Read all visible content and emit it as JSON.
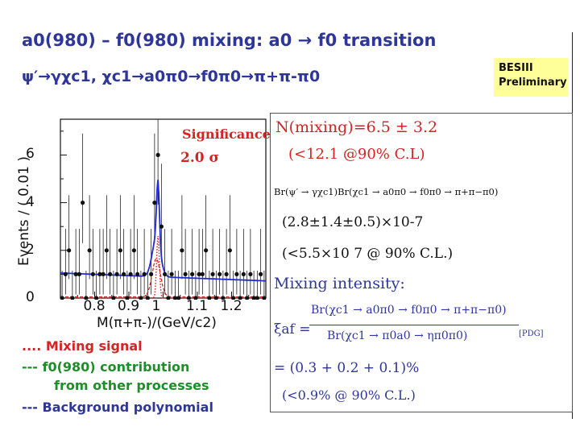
{
  "slide": {
    "title": "a0(980) – f0(980) mixing: a0 → f0 transition",
    "subtitle": "ψ′→γχc1, χc1→a0π0→f0π0→π+π-π0",
    "badge_line1": "BESIII",
    "badge_line2": "Preliminary"
  },
  "plot": {
    "significance_label": "Significance:",
    "significance_value": "2.0 σ",
    "ylabel": "Events / ( 0.01 )",
    "xlabel": "M(π+π-)/(GeV/c2)"
  },
  "chart_data": {
    "type": "scatter",
    "xlabel": "M(π+π-)/(GeV/c2)",
    "ylabel": "Events / ( 0.01 )",
    "xlim": [
      0.7,
      1.3
    ],
    "ylim": [
      0,
      7.5
    ],
    "xticks": [
      "0.8",
      "0.9",
      "1",
      "1.1",
      "1.2"
    ],
    "yticks": [
      "0",
      "2",
      "4",
      "6"
    ],
    "points": {
      "x": [
        0.705,
        0.715,
        0.725,
        0.735,
        0.745,
        0.755,
        0.765,
        0.775,
        0.785,
        0.795,
        0.805,
        0.815,
        0.825,
        0.835,
        0.845,
        0.855,
        0.865,
        0.875,
        0.885,
        0.895,
        0.905,
        0.915,
        0.925,
        0.935,
        0.945,
        0.955,
        0.965,
        0.975,
        0.985,
        0.995,
        1.005,
        1.015,
        1.025,
        1.035,
        1.045,
        1.055,
        1.065,
        1.075,
        1.085,
        1.095,
        1.105,
        1.115,
        1.125,
        1.135,
        1.145,
        1.155,
        1.165,
        1.175,
        1.185,
        1.195,
        1.205,
        1.215,
        1.225,
        1.235,
        1.245,
        1.255,
        1.265,
        1.275,
        1.285,
        1.295
      ],
      "y": [
        0,
        1,
        2,
        0,
        1,
        1,
        4,
        0,
        2,
        1,
        0,
        1,
        1,
        2,
        1,
        0,
        1,
        2,
        1,
        0,
        1,
        2,
        1,
        0,
        1,
        0,
        1,
        4,
        6,
        3,
        1,
        0,
        1,
        0,
        0,
        2,
        1,
        0,
        1,
        0,
        1,
        1,
        2,
        0,
        1,
        0,
        1,
        0,
        1,
        2,
        0,
        1,
        0,
        1,
        0,
        1,
        0,
        0,
        1,
        0
      ]
    },
    "series": [
      {
        "name": "Mixing signal",
        "color": "#d42424",
        "style": "dotted"
      },
      {
        "name": "f0(980) contribution from other processes",
        "color": "#d42424",
        "style": "dashed"
      },
      {
        "name": "Background polynomial",
        "color": "#1f2bd8",
        "style": "dashed"
      }
    ]
  },
  "legend": {
    "item1": ".... Mixing signal",
    "item2a": "--- f0(980) contribution",
    "item2b": "from other processes",
    "item3": "--- Background polynomial"
  },
  "results": {
    "n_mixing": "N(mixing)=6.5 ± 3.2",
    "n_limit": "(<12.1 @90% C.L)",
    "br_product": "Br(ψ′ → γχc1)Br(χc1 → a0π0 → f0π0 → π+π−π0)",
    "br_value": "(2.8±1.4±0.5)×10-7",
    "br_limit": "(<5.5×10 7 @ 90% C.L.)",
    "mixing_intensity": "Mixing intensity:",
    "xi_symbol": "ξaf =",
    "ratio_numerator": "Br(χc1 → a0π0 → f0π0 → π+π−π0)",
    "ratio_denominator": "Br(χc1 → π0a0 → ηπ0π0)",
    "pdg_tag": "[PDG]",
    "xi_value": "= (0.3 + 0.2 + 0.1)%",
    "xi_limit": "(<0.9% @ 90% C.L.)"
  },
  "colors": {
    "title": "#2f3699",
    "red": "#d42424",
    "blue": "#1f2bd8",
    "badge": "#ffff99",
    "green_legend": "#1e8e2a"
  }
}
